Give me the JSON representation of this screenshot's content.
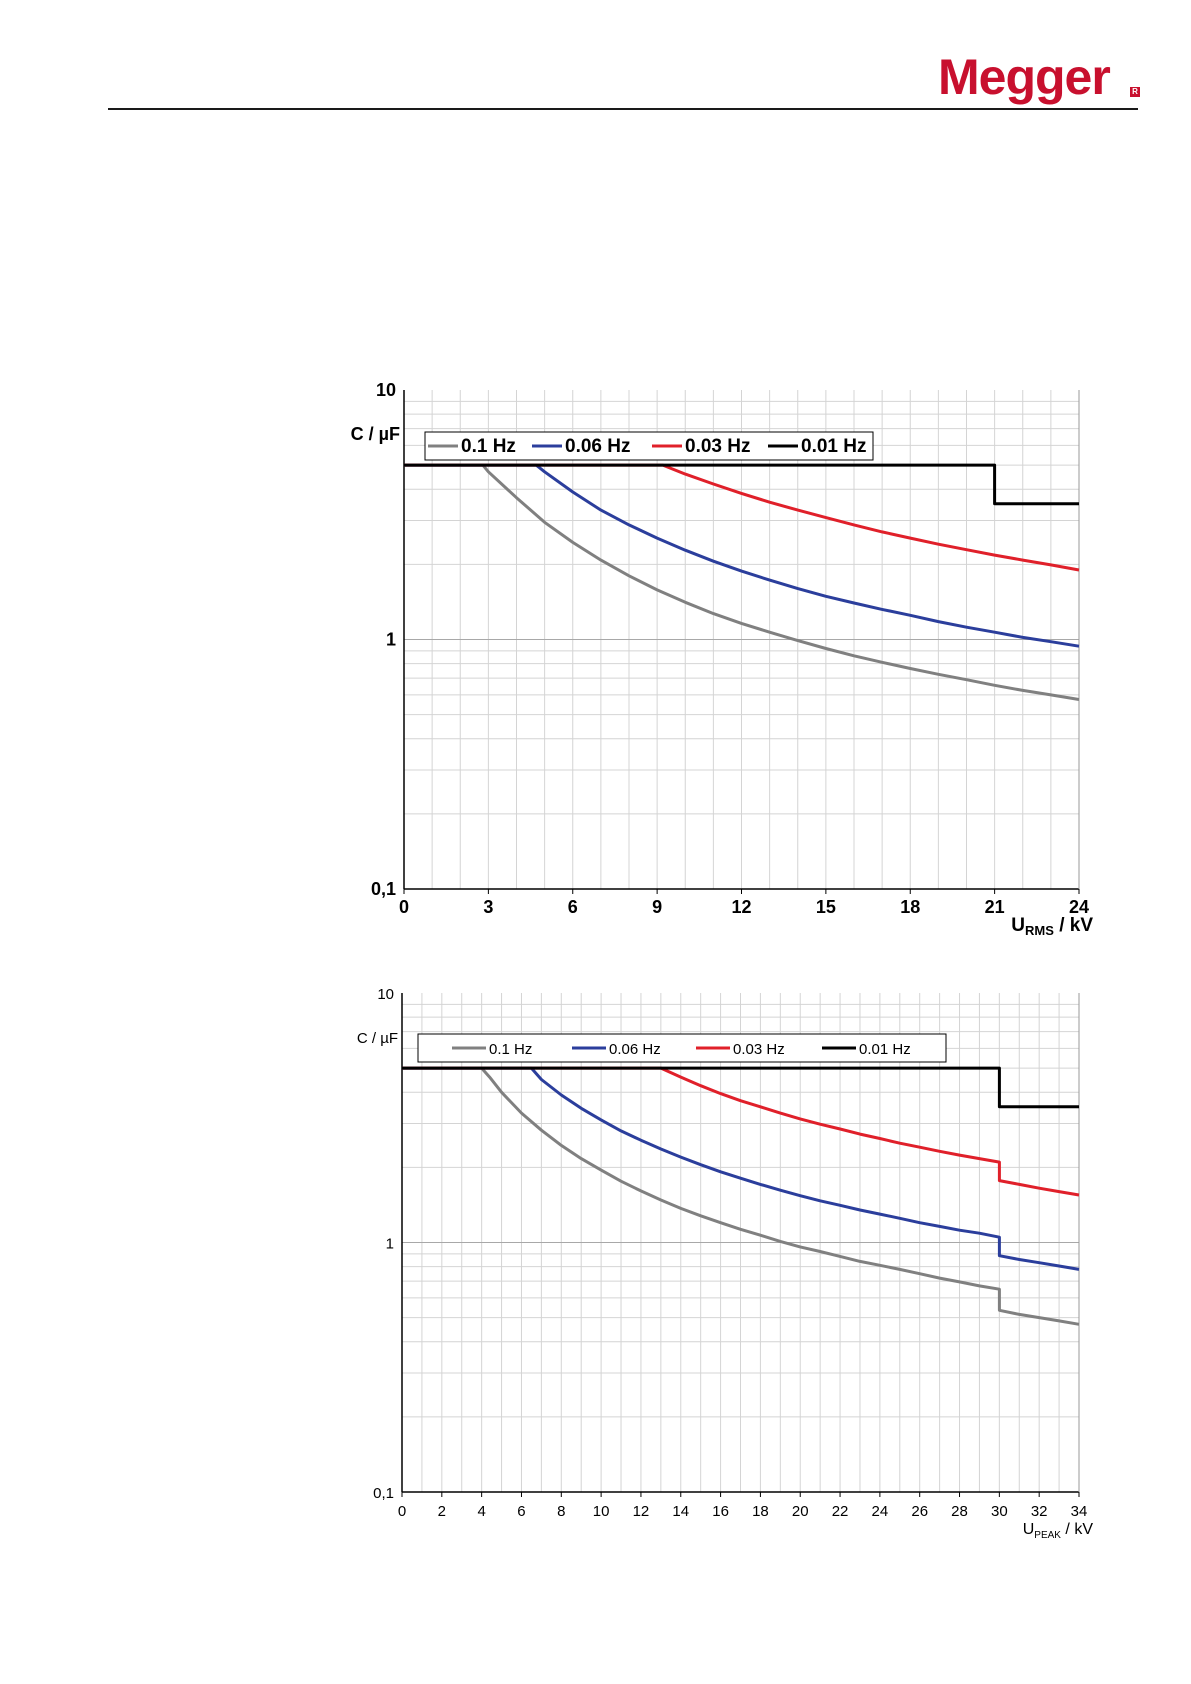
{
  "header": {
    "logo_text": "Megger",
    "logo_color": "#c8102e",
    "logo_reg": "R"
  },
  "chart_data": [
    {
      "type": "line",
      "y_scale": "log",
      "ylabel": "C / µF",
      "xlabel_main": "U",
      "xlabel_sub": "RMS",
      "xlabel_unit": " / kV",
      "xlim": [
        0,
        24
      ],
      "ylim": [
        0.1,
        10
      ],
      "x_ticks": [
        0,
        3,
        6,
        9,
        12,
        15,
        18,
        21,
        24
      ],
      "x_tick_labels": [
        "0",
        "3",
        "6",
        "9",
        "12",
        "15",
        "18",
        "21",
        "24"
      ],
      "y_tick_labels": [
        "10",
        "1",
        "0,1"
      ],
      "grid": true,
      "legend": "top",
      "series": [
        {
          "name": "0.1 Hz",
          "color": "#808080",
          "x": [
            0,
            2.8,
            3.0,
            4,
            5,
            6,
            7,
            8,
            9,
            10,
            11,
            12,
            13,
            14,
            15,
            16,
            17,
            18,
            19,
            20,
            21,
            22,
            23,
            24
          ],
          "y": [
            5.0,
            5.0,
            4.7,
            3.7,
            2.95,
            2.45,
            2.08,
            1.8,
            1.58,
            1.41,
            1.27,
            1.16,
            1.07,
            0.99,
            0.92,
            0.86,
            0.81,
            0.765,
            0.725,
            0.69,
            0.655,
            0.625,
            0.6,
            0.575
          ]
        },
        {
          "name": "0.06 Hz",
          "color": "#2b3e9c",
          "x": [
            0,
            4.7,
            5,
            6,
            7,
            8,
            9,
            10,
            11,
            12,
            13,
            14,
            15,
            16,
            17,
            18,
            19,
            20,
            21,
            22,
            23,
            24
          ],
          "y": [
            5.0,
            5.0,
            4.7,
            3.9,
            3.3,
            2.88,
            2.55,
            2.28,
            2.06,
            1.88,
            1.73,
            1.6,
            1.49,
            1.4,
            1.32,
            1.25,
            1.18,
            1.12,
            1.07,
            1.02,
            0.98,
            0.94
          ]
        },
        {
          "name": "0.03 Hz",
          "color": "#e0202a",
          "x": [
            0,
            9.2,
            10,
            11,
            12,
            13,
            14,
            15,
            16,
            17,
            18,
            19,
            20,
            21,
            22,
            23,
            24
          ],
          "y": [
            5.0,
            5.0,
            4.6,
            4.2,
            3.85,
            3.55,
            3.3,
            3.08,
            2.88,
            2.7,
            2.55,
            2.41,
            2.29,
            2.18,
            2.08,
            1.99,
            1.9
          ]
        },
        {
          "name": "0.01 Hz",
          "color": "#000000",
          "x": [
            0,
            21,
            21,
            24
          ],
          "y": [
            5.0,
            5.0,
            3.5,
            3.5
          ]
        }
      ]
    },
    {
      "type": "line",
      "y_scale": "log",
      "ylabel": "C / µF",
      "xlabel_main": "U",
      "xlabel_sub": "PEAK",
      "xlabel_unit": " / kV",
      "xlim": [
        0,
        34
      ],
      "ylim": [
        0.1,
        10
      ],
      "x_ticks": [
        0,
        2,
        4,
        6,
        8,
        10,
        12,
        14,
        16,
        18,
        20,
        22,
        24,
        26,
        28,
        30,
        32,
        34
      ],
      "x_tick_labels": [
        "0",
        "2",
        "4",
        "6",
        "8",
        "10",
        "12",
        "14",
        "16",
        "18",
        "20",
        "22",
        "24",
        "26",
        "28",
        "30",
        "32",
        "34"
      ],
      "y_tick_labels": [
        "10",
        "1",
        "0,1"
      ],
      "grid": true,
      "legend": "top",
      "series": [
        {
          "name": "0.1 Hz",
          "color": "#808080",
          "x": [
            0,
            4,
            4.4,
            5,
            6,
            7,
            8,
            9,
            10,
            11,
            12,
            13,
            14,
            15,
            16,
            17,
            18,
            19,
            20,
            21,
            22,
            23,
            24,
            25,
            26,
            27,
            28,
            29,
            30,
            30,
            31,
            32,
            33,
            34
          ],
          "y": [
            5.0,
            5.0,
            4.6,
            4.0,
            3.3,
            2.82,
            2.45,
            2.17,
            1.95,
            1.76,
            1.61,
            1.48,
            1.37,
            1.28,
            1.2,
            1.13,
            1.07,
            1.01,
            0.96,
            0.92,
            0.88,
            0.84,
            0.81,
            0.78,
            0.75,
            0.72,
            0.695,
            0.67,
            0.65,
            0.535,
            0.515,
            0.5,
            0.485,
            0.47
          ]
        },
        {
          "name": "0.06 Hz",
          "color": "#2b3e9c",
          "x": [
            0,
            6.5,
            7,
            8,
            9,
            10,
            11,
            12,
            13,
            14,
            15,
            16,
            17,
            18,
            19,
            20,
            21,
            22,
            23,
            24,
            25,
            26,
            27,
            28,
            29,
            30,
            30,
            31,
            32,
            33,
            34
          ],
          "y": [
            5.0,
            5.0,
            4.5,
            3.9,
            3.45,
            3.1,
            2.8,
            2.57,
            2.37,
            2.2,
            2.05,
            1.92,
            1.81,
            1.71,
            1.62,
            1.54,
            1.47,
            1.41,
            1.35,
            1.3,
            1.25,
            1.2,
            1.16,
            1.12,
            1.09,
            1.05,
            0.885,
            0.855,
            0.83,
            0.805,
            0.78
          ]
        },
        {
          "name": "0.03 Hz",
          "color": "#e0202a",
          "x": [
            0,
            13,
            14,
            15,
            16,
            17,
            18,
            19,
            20,
            21,
            22,
            23,
            24,
            25,
            26,
            27,
            28,
            29,
            30,
            30,
            31,
            32,
            33,
            34
          ],
          "y": [
            5.0,
            5.0,
            4.6,
            4.25,
            3.95,
            3.7,
            3.5,
            3.3,
            3.13,
            2.98,
            2.85,
            2.72,
            2.61,
            2.5,
            2.41,
            2.32,
            2.24,
            2.17,
            2.1,
            1.77,
            1.71,
            1.65,
            1.6,
            1.55
          ]
        },
        {
          "name": "0.01 Hz",
          "color": "#000000",
          "x": [
            0,
            30,
            30,
            34
          ],
          "y": [
            5.0,
            5.0,
            3.5,
            3.5
          ]
        }
      ]
    }
  ]
}
